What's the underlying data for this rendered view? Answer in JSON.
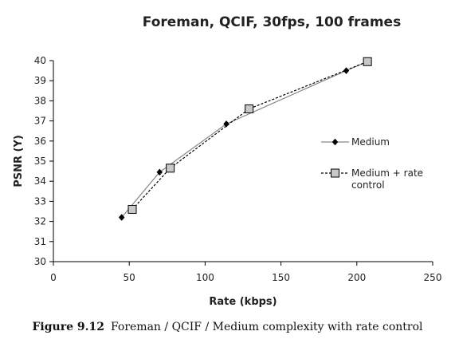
{
  "chart_data": {
    "type": "line",
    "title": "Foreman, QCIF, 30fps, 100 frames",
    "xlabel": "Rate (kbps)",
    "ylabel": "PSNR (Y)",
    "xlim": [
      0,
      250
    ],
    "ylim": [
      30,
      40
    ],
    "xticks": [
      "0",
      "50",
      "100",
      "150",
      "200",
      "250"
    ],
    "yticks": [
      "30",
      "31",
      "32",
      "33",
      "34",
      "35",
      "36",
      "37",
      "38",
      "39",
      "40"
    ],
    "grid": false,
    "legend_position": "right",
    "series": [
      {
        "name": "Medium",
        "marker": "diamond",
        "line": "solid",
        "color": "#888888",
        "points": [
          [
            45,
            32.2
          ],
          [
            70,
            34.45
          ],
          [
            114,
            36.85
          ],
          [
            193,
            39.5
          ],
          [
            207,
            39.95
          ]
        ]
      },
      {
        "name": "Medium + rate control",
        "legend_lines": [
          "Medium + rate",
          "control"
        ],
        "marker": "square",
        "line": "dashed",
        "color": "#000000",
        "points": [
          [
            52,
            32.6
          ],
          [
            77,
            34.65
          ],
          [
            129,
            37.6
          ],
          [
            207,
            39.95
          ]
        ]
      }
    ]
  },
  "caption": {
    "figure": "Figure 9.12",
    "text": "Foreman / QCIF / Medium complexity with rate control"
  }
}
